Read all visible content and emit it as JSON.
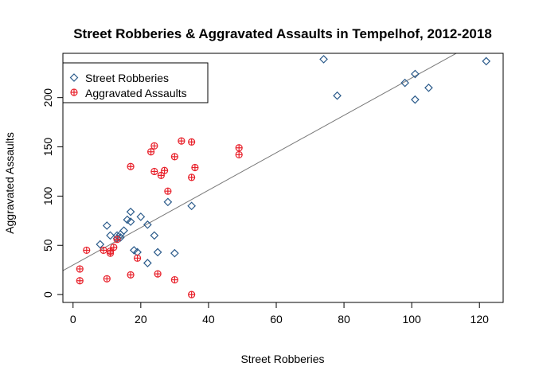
{
  "chart_data": {
    "type": "scatter",
    "title": "Street Robberies & Aggravated Assaults in Tempelhof, 2012-2018",
    "xlabel": "Street Robberies",
    "ylabel": "Aggravated Assaults",
    "xlim": [
      -3,
      127
    ],
    "ylim": [
      -8,
      245
    ],
    "x_ticks": [
      0,
      20,
      40,
      60,
      80,
      100,
      120
    ],
    "y_ticks": [
      0,
      50,
      100,
      150,
      200
    ],
    "grid": false,
    "legend_position": "top-left",
    "series": [
      {
        "name": "Street Robberies",
        "marker": "diamond",
        "color": "#2a5a8a",
        "points": [
          [
            8,
            51
          ],
          [
            10,
            70
          ],
          [
            11,
            60
          ],
          [
            13,
            57
          ],
          [
            13,
            60
          ],
          [
            14,
            61
          ],
          [
            14,
            58
          ],
          [
            15,
            65
          ],
          [
            16,
            76
          ],
          [
            17,
            74
          ],
          [
            17,
            84
          ],
          [
            18,
            45
          ],
          [
            19,
            43
          ],
          [
            20,
            79
          ],
          [
            22,
            71
          ],
          [
            22,
            32
          ],
          [
            24,
            60
          ],
          [
            25,
            43
          ],
          [
            28,
            94
          ],
          [
            30,
            42
          ],
          [
            35,
            90
          ],
          [
            74,
            239
          ],
          [
            78,
            202
          ],
          [
            98,
            215
          ],
          [
            101,
            224
          ],
          [
            101,
            198
          ],
          [
            105,
            210
          ],
          [
            122,
            237
          ]
        ]
      },
      {
        "name": "Aggravated Assaults",
        "marker": "circle-plus",
        "color": "#e8202a",
        "points": [
          [
            2,
            14
          ],
          [
            2,
            26
          ],
          [
            4,
            45
          ],
          [
            9,
            45
          ],
          [
            10,
            16
          ],
          [
            11,
            42
          ],
          [
            11,
            44
          ],
          [
            12,
            48
          ],
          [
            13,
            56
          ],
          [
            17,
            130
          ],
          [
            17,
            20
          ],
          [
            19,
            37
          ],
          [
            23,
            145
          ],
          [
            24,
            151
          ],
          [
            24,
            125
          ],
          [
            25,
            21
          ],
          [
            26,
            121
          ],
          [
            27,
            126
          ],
          [
            28,
            105
          ],
          [
            30,
            140
          ],
          [
            30,
            15
          ],
          [
            32,
            156
          ],
          [
            35,
            155
          ],
          [
            35,
            119
          ],
          [
            35,
            0
          ],
          [
            36,
            129
          ],
          [
            49,
            149
          ],
          [
            49,
            142
          ]
        ]
      }
    ],
    "trend_line": {
      "intercept": 30,
      "slope": 1.9,
      "color": "#777777"
    }
  }
}
